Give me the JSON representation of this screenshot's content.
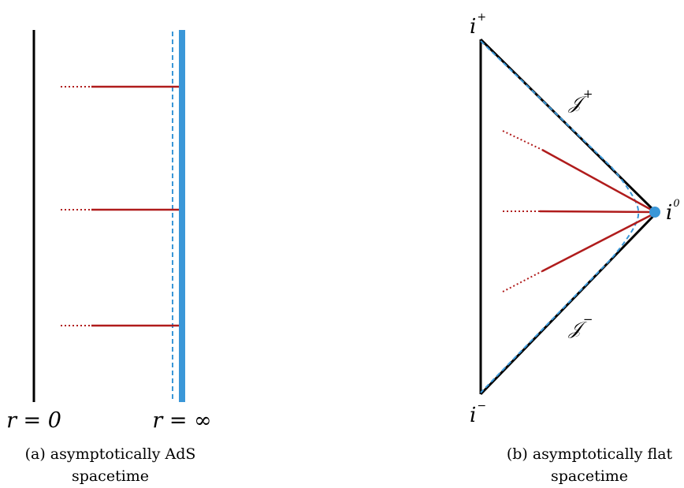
{
  "panel_a": {
    "label_r0": "r = 0",
    "label_rinf": "r = ∞",
    "caption_line1": "(a) asymptotically AdS",
    "caption_line2": "spacetime"
  },
  "panel_b": {
    "label_iplus": "i",
    "label_iplus_sup": "+",
    "label_iminus": "i",
    "label_iminus_sup": "−",
    "label_i0": "i",
    "label_i0_sup": "0",
    "label_scri_plus": "𝒥",
    "label_scri_plus_sup": "+",
    "label_scri_minus": "𝒥",
    "label_scri_minus_sup": "−",
    "caption_line1": "(b) asymptotically flat",
    "caption_line2": "spacetime"
  },
  "colors": {
    "black": "#000000",
    "red": "#b01c1c",
    "blue": "#3a97d8"
  }
}
